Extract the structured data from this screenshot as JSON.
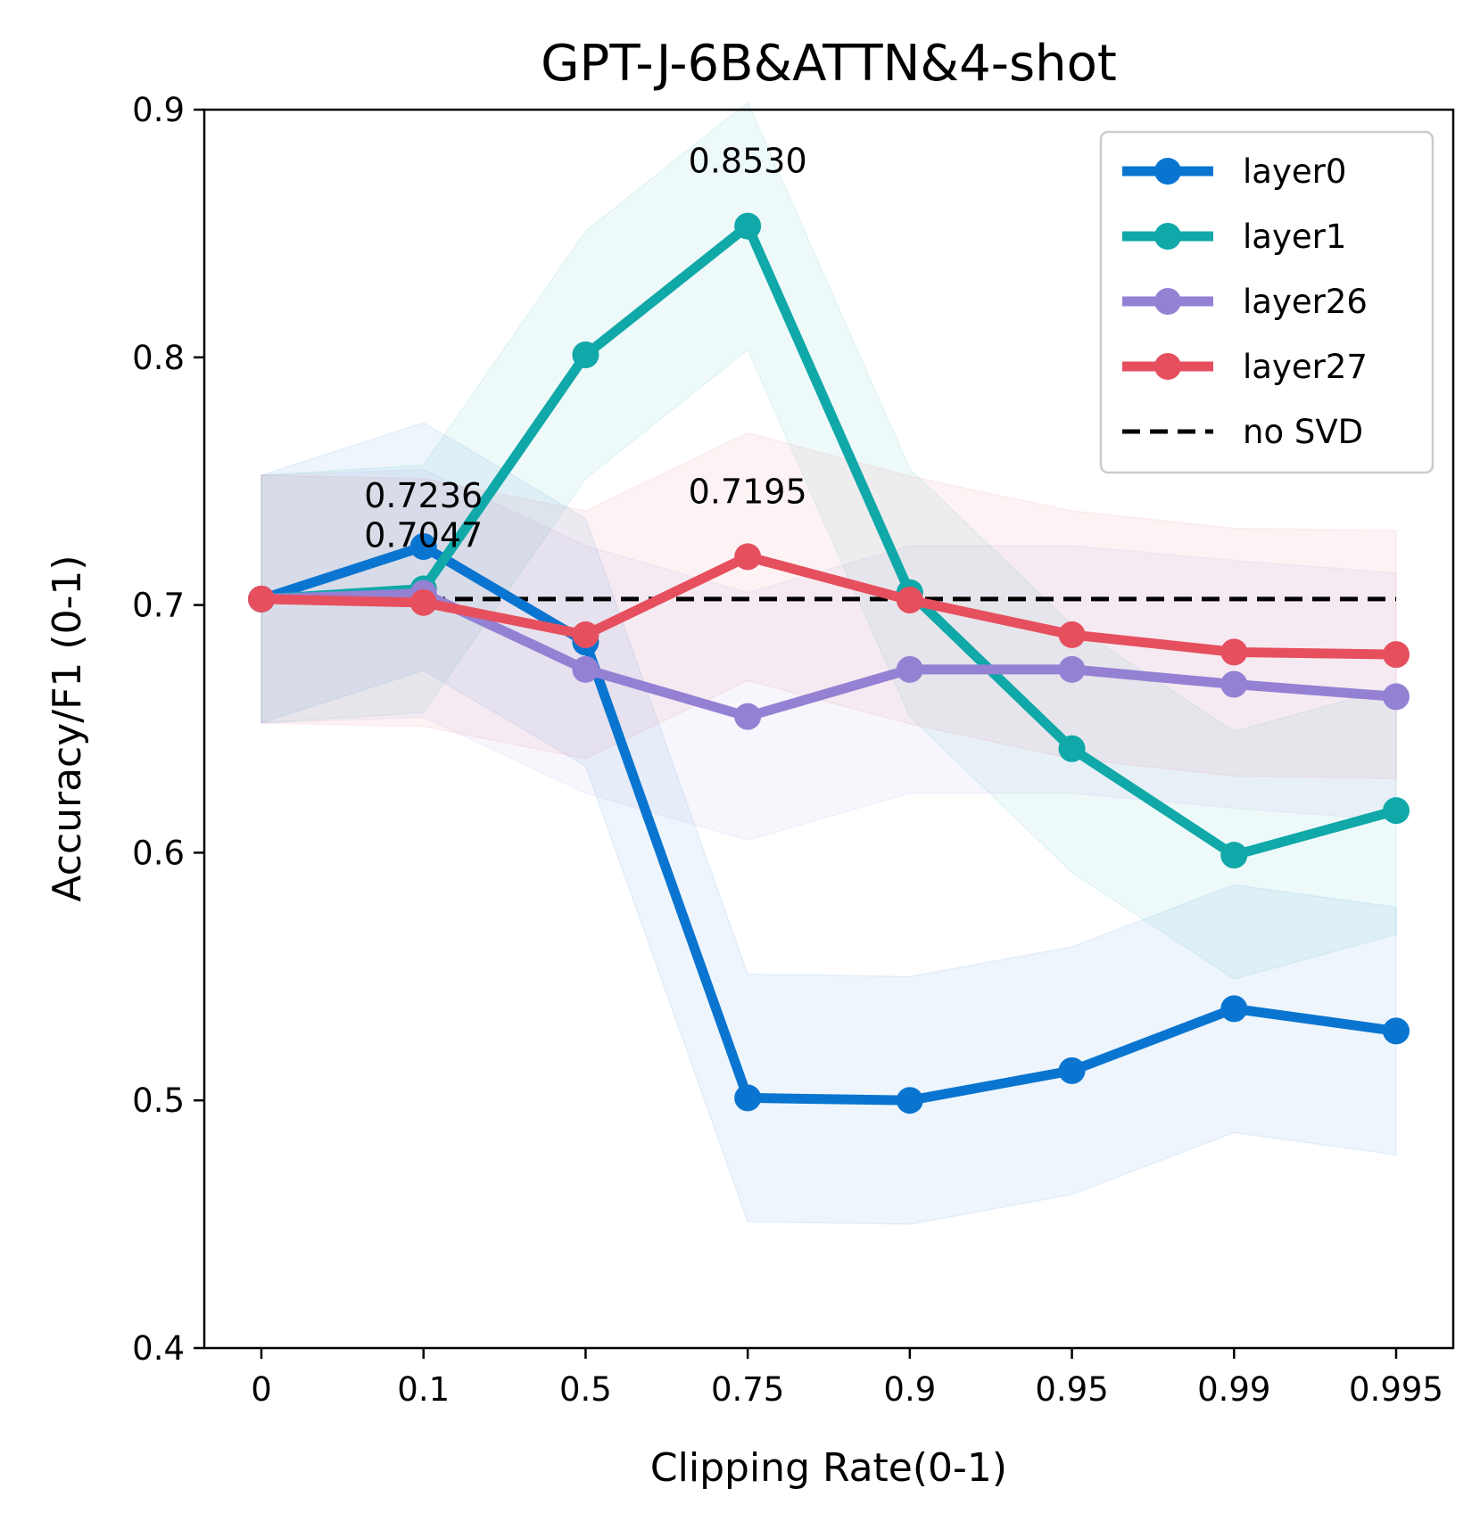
{
  "chart_data": {
    "type": "line",
    "title": "GPT-J-6B&ATTN&4-shot",
    "xlabel": "Clipping Rate(0-1)",
    "ylabel": "Accuracy/F1 (0-1)",
    "categories": [
      "0",
      "0.1",
      "0.5",
      "0.75",
      "0.9",
      "0.95",
      "0.99",
      "0.995"
    ],
    "ylim": [
      0.4,
      0.9
    ],
    "yticks": [
      "0.4",
      "0.5",
      "0.6",
      "0.7",
      "0.8",
      "0.9"
    ],
    "grid": false,
    "legend_position": "top-right",
    "series": [
      {
        "name": "layer0",
        "color": "#0a75d0",
        "values": [
          0.7024,
          0.7236,
          0.685,
          0.501,
          0.5,
          0.512,
          0.537,
          0.528
        ],
        "band": 0.05
      },
      {
        "name": "layer1",
        "color": "#10a8a8",
        "values": [
          0.7024,
          0.7065,
          0.801,
          0.853,
          0.705,
          0.642,
          0.599,
          0.617
        ],
        "band": 0.05
      },
      {
        "name": "layer26",
        "color": "#9481d4",
        "values": [
          0.7024,
          0.7047,
          0.674,
          0.655,
          0.674,
          0.674,
          0.668,
          0.663
        ],
        "band": 0.05
      },
      {
        "name": "layer27",
        "color": "#e64f5e",
        "values": [
          0.7024,
          0.701,
          0.688,
          0.7195,
          0.702,
          0.688,
          0.681,
          0.68
        ],
        "band": 0.05
      }
    ],
    "baseline": {
      "name": "no SVD",
      "value": 0.7024,
      "color": "#000000",
      "style": "dashed"
    },
    "annotations": [
      {
        "text": "0.7236",
        "x": "0.1",
        "y": 0.7236
      },
      {
        "text": "0.7047",
        "x": "0.1",
        "y": 0.7047
      },
      {
        "text": "0.8530",
        "x": "0.75",
        "y": 0.853
      },
      {
        "text": "0.7195",
        "x": "0.75",
        "y": 0.7195
      }
    ]
  }
}
